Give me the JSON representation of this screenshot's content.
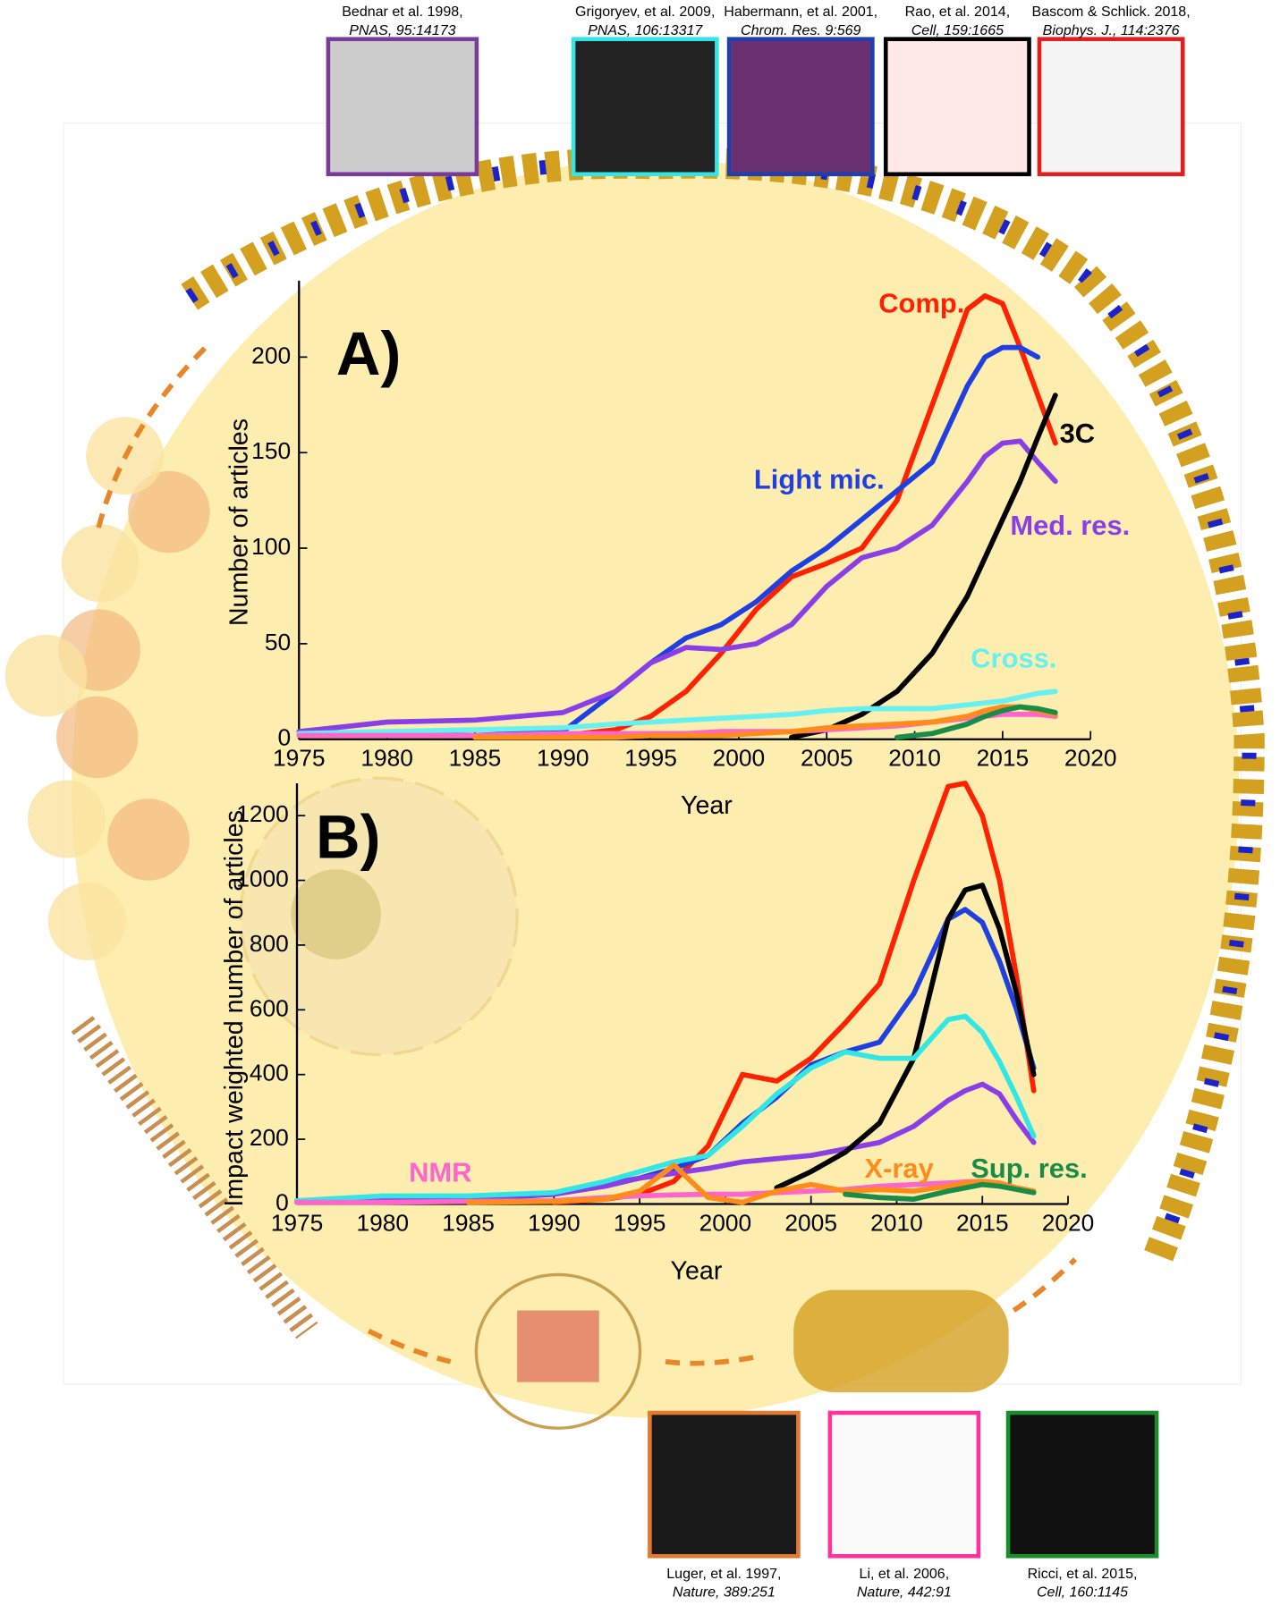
{
  "chart_data": [
    {
      "type": "line",
      "panel_label": "A)",
      "x_label": "Year",
      "y_label": "Number of articles",
      "x": [
        1975,
        1980,
        1985,
        1990,
        1993,
        1995,
        1997,
        1999,
        2001,
        2003,
        2005,
        2007,
        2009,
        2011,
        2013,
        2014,
        2015,
        2016,
        2017,
        2018
      ],
      "xlim": [
        1975,
        2020
      ],
      "xticks": [
        1975,
        1980,
        1985,
        1990,
        1995,
        2000,
        2005,
        2010,
        2015,
        2020
      ],
      "ylim": [
        0,
        240
      ],
      "yticks": [
        0,
        50,
        100,
        150,
        200
      ],
      "series": [
        {
          "name": "Comp.",
          "color": "#ff2200",
          "values": [
            null,
            null,
            null,
            2,
            5,
            12,
            25,
            45,
            68,
            85,
            92,
            100,
            125,
            175,
            225,
            232,
            228,
            205,
            180,
            155
          ]
        },
        {
          "name": "Light mic.",
          "color": "#1f3fe0",
          "values": [
            null,
            3,
            2,
            4,
            25,
            40,
            53,
            60,
            72,
            88,
            100,
            115,
            130,
            145,
            185,
            200,
            205,
            205,
            200,
            null
          ]
        },
        {
          "name": "Med. res.",
          "color": "#8a3ee6",
          "values": [
            4,
            9,
            10,
            14,
            25,
            40,
            48,
            47,
            50,
            60,
            80,
            95,
            100,
            112,
            135,
            148,
            155,
            156,
            145,
            135
          ]
        },
        {
          "name": "3C",
          "color": "#000000",
          "values": [
            null,
            null,
            null,
            null,
            null,
            null,
            null,
            null,
            null,
            1,
            5,
            13,
            25,
            45,
            75,
            95,
            115,
            135,
            158,
            180
          ]
        },
        {
          "name": "Cross.",
          "color": "#66f0f0",
          "values": [
            3,
            4,
            5,
            6,
            8,
            9,
            10,
            11,
            12,
            13,
            15,
            16,
            16,
            16,
            18,
            19,
            20,
            22,
            24,
            25
          ]
        },
        {
          "color": "#ff66cc",
          "values": [
            2,
            2,
            2,
            3,
            3,
            3,
            3,
            4,
            4,
            4,
            5,
            6,
            7,
            9,
            11,
            12,
            13,
            13,
            13,
            12
          ]
        },
        {
          "color": "#ff8c1a",
          "values": [
            null,
            null,
            1,
            1,
            1,
            2,
            2,
            2,
            3,
            4,
            6,
            7,
            8,
            9,
            12,
            15,
            17,
            17,
            15,
            13
          ]
        },
        {
          "color": "#1a8c4a",
          "values": [
            null,
            null,
            null,
            null,
            null,
            null,
            null,
            null,
            null,
            null,
            null,
            null,
            1,
            3,
            8,
            12,
            15,
            17,
            16,
            14
          ]
        }
      ]
    },
    {
      "type": "line",
      "panel_label": "B)",
      "x_label": "Year",
      "y_label": "Impact weighted number of articles",
      "x": [
        1975,
        1980,
        1985,
        1990,
        1993,
        1995,
        1997,
        1999,
        2001,
        2003,
        2005,
        2007,
        2009,
        2011,
        2013,
        2014,
        2015,
        2016,
        2017,
        2018
      ],
      "xlim": [
        1975,
        2020
      ],
      "xticks": [
        1975,
        1980,
        1985,
        1990,
        1995,
        2000,
        2005,
        2010,
        2015,
        2020
      ],
      "ylim": [
        0,
        1300
      ],
      "yticks": [
        0,
        200,
        400,
        600,
        800,
        1000,
        1200
      ],
      "series": [
        {
          "color": "#ff2200",
          "values": [
            null,
            null,
            null,
            5,
            15,
            30,
            70,
            180,
            400,
            380,
            450,
            560,
            680,
            1000,
            1290,
            1300,
            1200,
            1000,
            700,
            350
          ]
        },
        {
          "color": "#1f3fe0",
          "values": [
            10,
            10,
            15,
            30,
            60,
            80,
            110,
            150,
            250,
            330,
            430,
            470,
            500,
            650,
            880,
            910,
            870,
            750,
            600,
            420
          ]
        },
        {
          "color": "#8a3ee6",
          "values": [
            5,
            10,
            20,
            30,
            55,
            80,
            95,
            110,
            130,
            140,
            150,
            170,
            190,
            240,
            320,
            350,
            370,
            340,
            260,
            190
          ]
        },
        {
          "color": "#000000",
          "values": [
            null,
            null,
            null,
            null,
            null,
            null,
            null,
            null,
            null,
            50,
            100,
            160,
            250,
            450,
            880,
            970,
            985,
            850,
            650,
            400
          ]
        },
        {
          "color": "#33e6e6",
          "values": [
            10,
            25,
            25,
            35,
            70,
            100,
            130,
            150,
            240,
            340,
            420,
            470,
            450,
            450,
            570,
            580,
            530,
            440,
            330,
            210
          ]
        },
        {
          "name": "NMR",
          "color": "#ff66cc",
          "values": [
            5,
            5,
            8,
            10,
            20,
            25,
            28,
            30,
            30,
            35,
            40,
            45,
            55,
            60,
            65,
            68,
            70,
            60,
            50,
            40
          ]
        },
        {
          "name": "X-ray",
          "color": "#ff8c1a",
          "values": [
            null,
            null,
            5,
            8,
            15,
            40,
            120,
            20,
            5,
            40,
            60,
            40,
            45,
            40,
            55,
            65,
            70,
            65,
            50,
            40
          ]
        },
        {
          "name": "Sup. res.",
          "color": "#1a8c4a",
          "values": [
            null,
            null,
            null,
            null,
            null,
            null,
            null,
            null,
            null,
            null,
            null,
            30,
            20,
            15,
            40,
            50,
            60,
            55,
            45,
            35
          ]
        }
      ]
    }
  ],
  "references": [
    {
      "line1": "Bednar et al. 1998,",
      "line2": "PNAS, 95:14173",
      "color": "#7a3a9a"
    },
    {
      "line1": "Grigoryev, et al. 2009,",
      "line2": "PNAS, 106:13317",
      "color": "#33e6e6"
    },
    {
      "line1": "Habermann, et al. 2001,",
      "line2": "Chrom. Res. 9:569",
      "color": "#1f3fb0"
    },
    {
      "line1": "Rao, et al. 2014,",
      "line2": "Cell, 159:1665",
      "color": "#000000"
    },
    {
      "line1": "Bascom & Schlick. 2018,",
      "line2": "Biophys. J., 114:2376",
      "color": "#e02020"
    },
    {
      "line1": "Luger, et al. 1997,",
      "line2": "Nature, 389:251",
      "color": "#e07a30"
    },
    {
      "line1": "Li, et al. 2006,",
      "line2": "Nature, 442:91",
      "color": "#ff3399"
    },
    {
      "line1": "Ricci, et al. 2015,",
      "line2": "Cell, 160:1145",
      "color": "#1a8c2a"
    }
  ]
}
